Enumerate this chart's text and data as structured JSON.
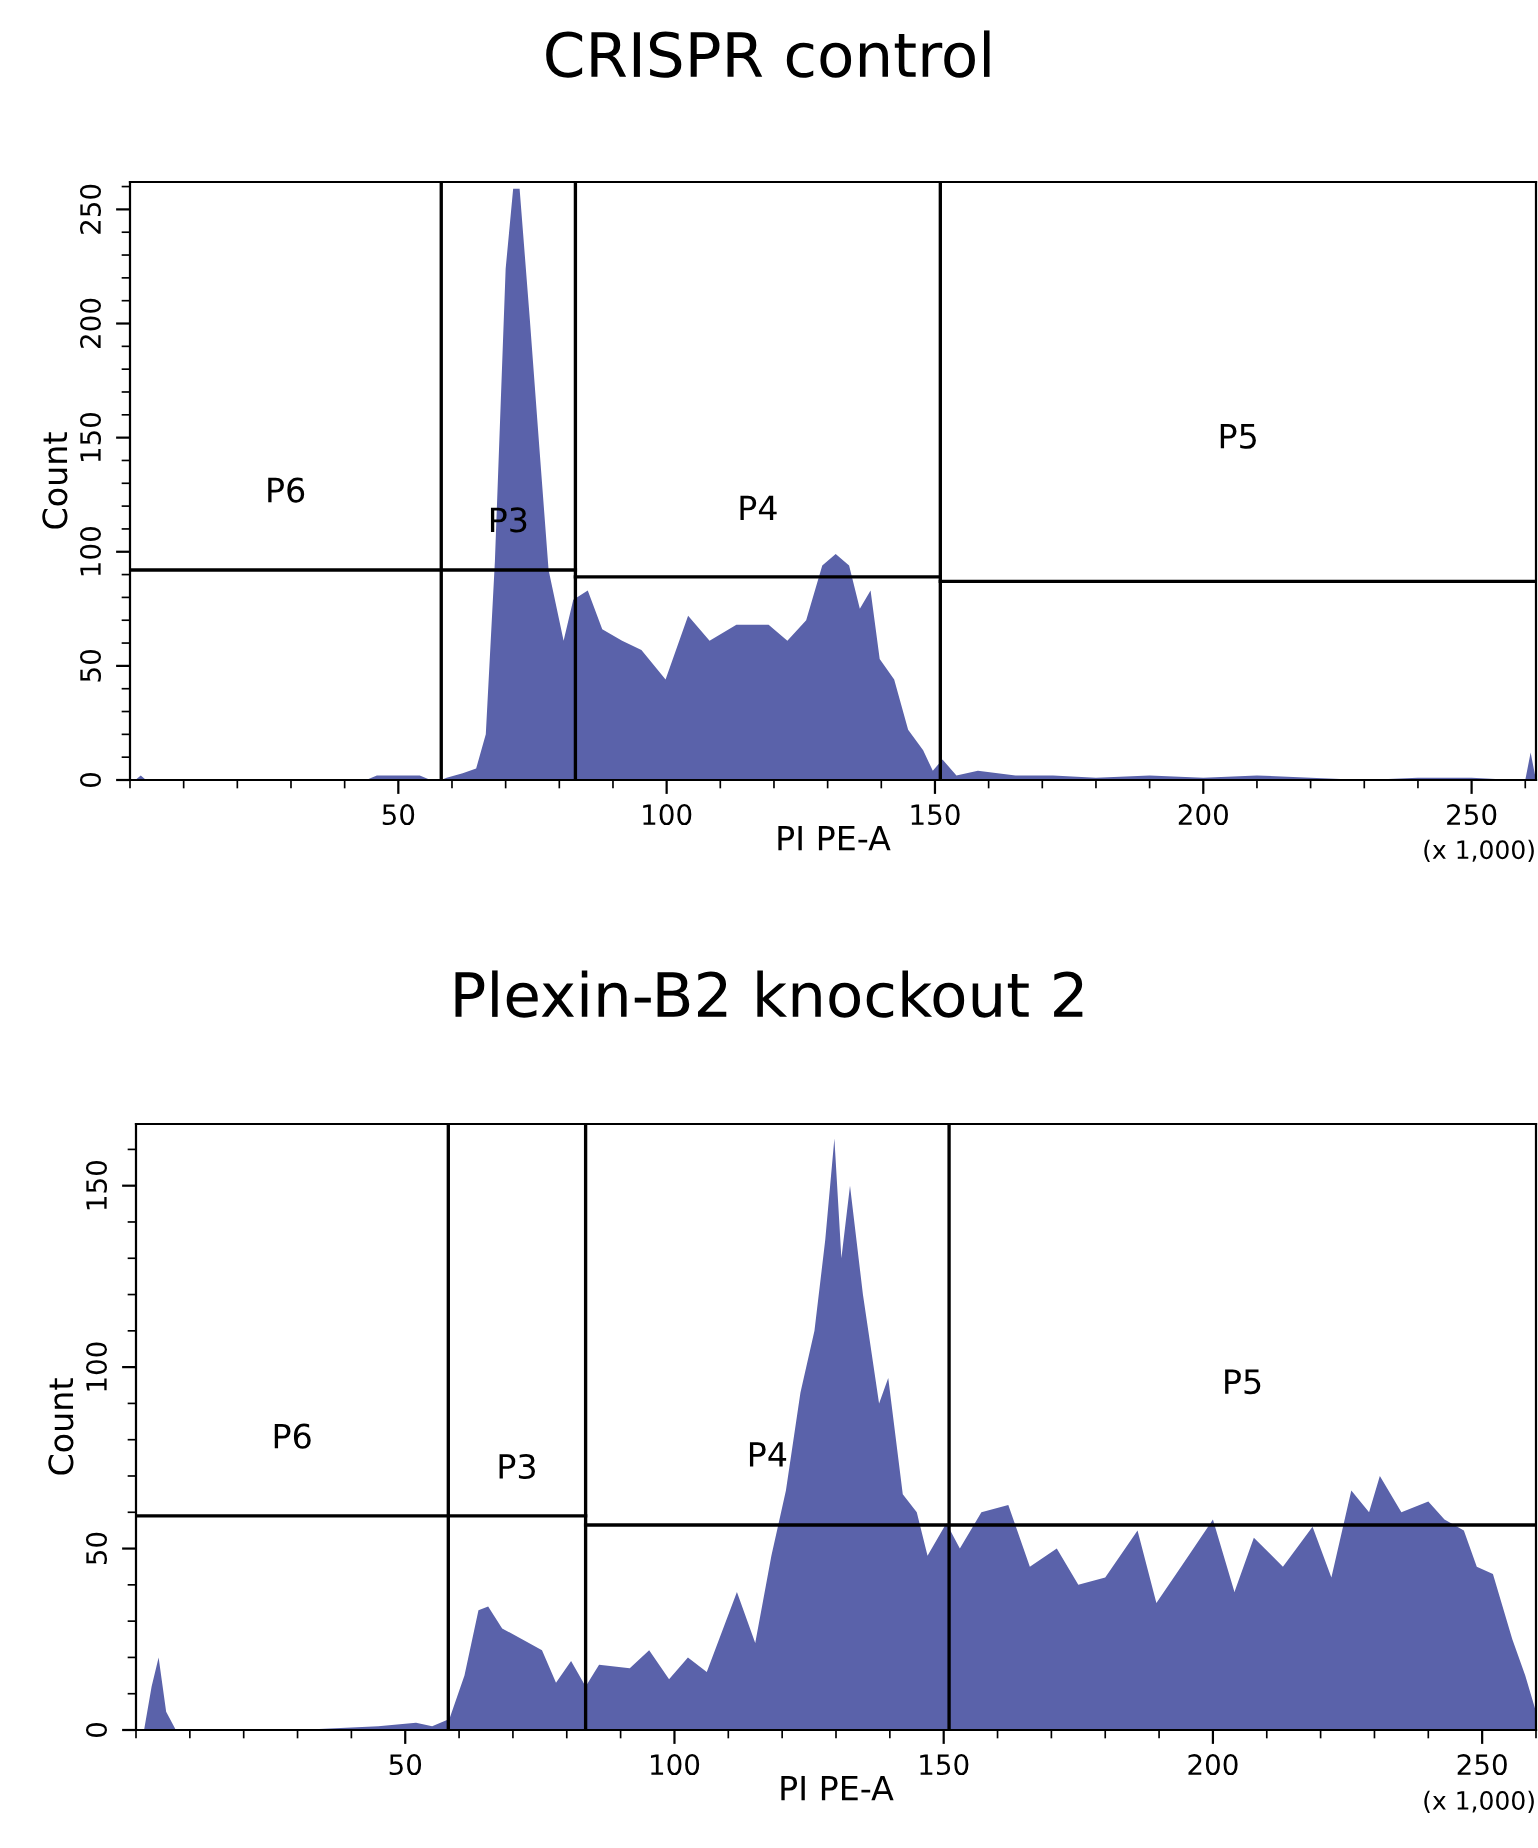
{
  "chart_data": [
    {
      "type": "area",
      "title": "CRISPR control",
      "xlabel": "PI PE-A",
      "ylabel": "Count",
      "annotations": [
        "P6",
        "P3",
        "P4",
        "P5",
        "(x 1,000)"
      ],
      "xlim": [
        0,
        262
      ],
      "ylim": [
        0,
        262
      ],
      "xticks": [
        50,
        100,
        150,
        200,
        250
      ],
      "yticks": [
        0,
        50,
        100,
        150,
        200,
        250
      ],
      "grid": false,
      "legend": false,
      "ref_lines": [
        {
          "axis": "x",
          "value": 58,
          "color": "#000000"
        },
        {
          "axis": "x",
          "value": 83,
          "color": "#000000"
        },
        {
          "axis": "x",
          "value": 151,
          "color": "#000000"
        }
      ],
      "series": [
        {
          "color": "#5a62aa",
          "x": [
            1,
            2,
            3,
            44,
            46,
            50,
            54,
            56,
            58,
            59,
            62,
            64.5,
            66.3,
            68,
            70,
            71.4,
            72.6,
            74.5,
            76.3,
            78,
            80.8,
            82.6,
            85.3,
            88,
            91.7,
            95.3,
            99.8,
            104,
            108,
            113,
            119,
            122.5,
            126,
            129,
            131.5,
            134,
            136,
            138,
            139.7,
            142.4,
            145,
            147.8,
            149.6,
            151.4,
            154,
            158,
            165,
            172,
            180,
            190,
            200,
            210,
            220,
            230,
            240,
            250,
            258,
            260,
            261,
            262
          ],
          "values": [
            0,
            2,
            0,
            0,
            2,
            2,
            2,
            0,
            0,
            1,
            3,
            5,
            20,
            96,
            224,
            259,
            259,
            202,
            145,
            92,
            61,
            79,
            83,
            66,
            61,
            57,
            44,
            72,
            61,
            68,
            68,
            61,
            70,
            94,
            99,
            94,
            75,
            83,
            53,
            44,
            22,
            13,
            4,
            9,
            2,
            4,
            2,
            2,
            1,
            2,
            1,
            2,
            1,
            0,
            1,
            1,
            0,
            0,
            12,
            0
          ]
        },
        {
          "type": "line",
          "color": "#000000",
          "x": [
            0,
            83
          ],
          "values": [
            92,
            92
          ]
        },
        {
          "type": "line",
          "color": "#000000",
          "x": [
            83,
            151
          ],
          "values": [
            89,
            89
          ]
        },
        {
          "type": "line",
          "color": "#000000",
          "x": [
            151,
            262
          ],
          "values": [
            87,
            87
          ]
        }
      ]
    },
    {
      "type": "area",
      "title": "Plexin-B2 knockout 2",
      "xlabel": "PI PE-A",
      "ylabel": "Count",
      "annotations": [
        "P6",
        "P3",
        "P4",
        "P5",
        "(x 1,000)"
      ],
      "xlim": [
        0,
        260
      ],
      "ylim": [
        0,
        167
      ],
      "xticks": [
        50,
        100,
        150,
        200,
        250
      ],
      "yticks": [
        0,
        50,
        100,
        150
      ],
      "grid": false,
      "legend": false,
      "ref_lines": [
        {
          "axis": "x",
          "value": 58,
          "color": "#000000"
        },
        {
          "axis": "x",
          "value": 83.5,
          "color": "#000000"
        },
        {
          "axis": "x",
          "value": 151,
          "color": "#000000"
        }
      ],
      "series": [
        {
          "color": "#5a62aa",
          "x": [
            1.5,
            2.9,
            4.2,
            5.6,
            7.4,
            30,
            45,
            52,
            55,
            58.2,
            61,
            63.6,
            65.4,
            68,
            71.7,
            75.4,
            78,
            80.8,
            83.5,
            86,
            91.7,
            95.3,
            99,
            102.5,
            106,
            111.6,
            115,
            118,
            120.7,
            123.4,
            126,
            128,
            129.7,
            131,
            132.6,
            135,
            138,
            139.7,
            142.4,
            145,
            147,
            150.5,
            153,
            157,
            162,
            166,
            171,
            175,
            180,
            186,
            189.5,
            195,
            200,
            204,
            207.6,
            213,
            218.5,
            222,
            225.7,
            229,
            231,
            235,
            240,
            243,
            246.6,
            249,
            252,
            255.6,
            258,
            260
          ],
          "values": [
            0,
            12,
            20,
            5,
            0,
            0,
            1,
            2,
            1,
            3,
            15,
            33,
            34,
            28,
            25,
            22,
            13,
            19,
            12,
            18,
            17,
            22,
            14,
            20,
            16,
            38,
            24,
            48,
            66,
            93,
            110,
            135,
            163,
            130,
            150,
            120,
            90,
            97,
            65,
            60,
            48,
            57,
            50,
            60,
            62,
            45,
            50,
            40,
            42,
            55,
            35,
            47,
            58,
            38,
            53,
            45,
            56,
            42,
            66,
            60,
            70,
            60,
            63,
            58,
            55,
            45,
            43,
            25,
            15,
            5
          ]
        },
        {
          "type": "line",
          "color": "#000000",
          "x": [
            0,
            83.5
          ],
          "values": [
            59,
            59
          ]
        },
        {
          "type": "line",
          "color": "#000000",
          "x": [
            83.5,
            260
          ],
          "values": [
            56.5,
            56.5
          ]
        }
      ]
    }
  ]
}
